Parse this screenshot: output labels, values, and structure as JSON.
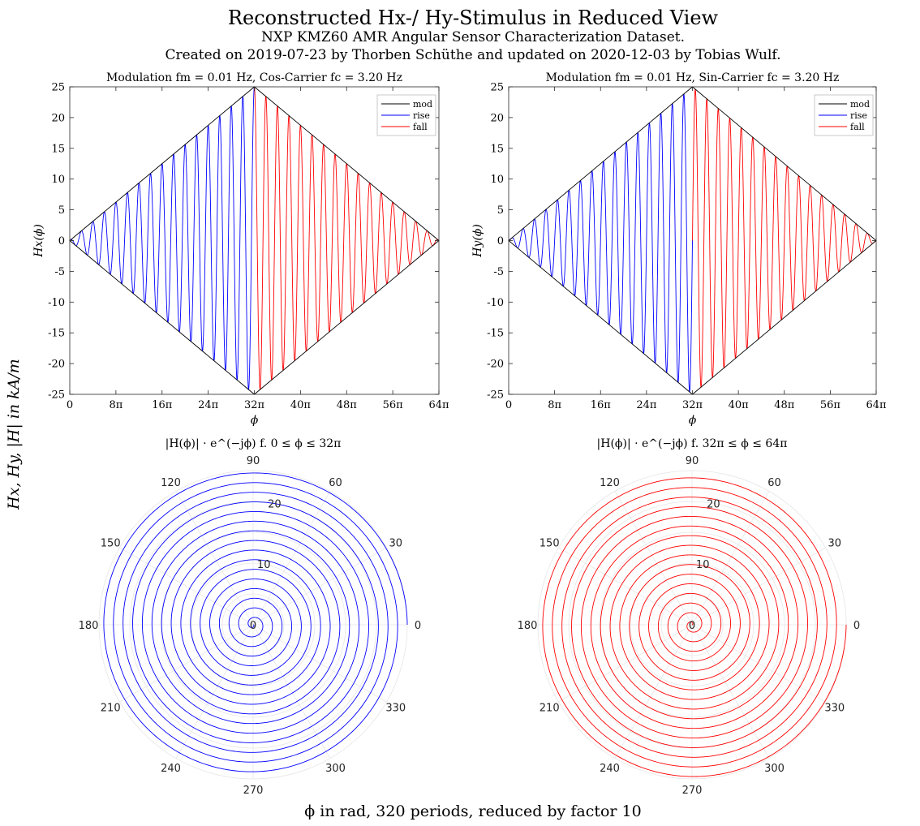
{
  "figure": {
    "title": "Reconstructed Hx-/ Hy-Stimulus in Reduced View",
    "subtitle1": "NXP KMZ60 AMR Angular Sensor Characterization Dataset.",
    "subtitle2": "Created on 2019-07-23 by Thorben Schüthe and updated on 2020-12-03 by Tobias Wulf.",
    "shared_ylabel": "Hx, Hy, |H| in kA/m",
    "shared_xlabel": "ϕ in rad, 320 periods, reduced by factor 10"
  },
  "colors": {
    "mod": "#000000",
    "rise": "#0000ff",
    "fall": "#ff0000",
    "axis": "#262626",
    "grid": "#e6e6e6"
  },
  "legend": [
    "mod",
    "rise",
    "fall"
  ],
  "chart_data": [
    {
      "type": "line",
      "title": "Modulation fm = 0.01 Hz, Cos-Carrier fc = 3.20 Hz",
      "xlabel": "ϕ",
      "ylabel": "Hx(ϕ)",
      "carrier": "cos",
      "periods": 32,
      "amplitude_max": 25,
      "xlim_pi": [
        0,
        64
      ],
      "ylim": [
        -25,
        25
      ],
      "x_ticks": [
        "0",
        "8π",
        "16π",
        "24π",
        "32π",
        "40π",
        "48π",
        "56π",
        "64π"
      ],
      "y_ticks": [
        "25",
        "20",
        "15",
        "10",
        "5",
        "0",
        "-5",
        "-10",
        "-15",
        "-20",
        "-25"
      ],
      "legend_position": "top-right",
      "series": [
        {
          "name": "mod",
          "description_values": {
            "envelope_peak": 25,
            "peak_at_pi": 32
          }
        },
        {
          "name": "rise",
          "x_range_pi": [
            0,
            32
          ]
        },
        {
          "name": "fall",
          "x_range_pi": [
            32,
            64
          ]
        }
      ]
    },
    {
      "type": "line",
      "title": "Modulation fm = 0.01 Hz, Sin-Carrier fc = 3.20 Hz",
      "xlabel": "ϕ",
      "ylabel": "Hy(ϕ)",
      "carrier": "sin",
      "periods": 32,
      "amplitude_max": 25,
      "xlim_pi": [
        0,
        64
      ],
      "ylim": [
        -25,
        25
      ],
      "x_ticks": [
        "0",
        "8π",
        "16π",
        "24π",
        "32π",
        "40π",
        "48π",
        "56π",
        "64π"
      ],
      "y_ticks": [
        "25",
        "20",
        "15",
        "10",
        "5",
        "0",
        "-5",
        "-10",
        "-15",
        "-20",
        "-25"
      ],
      "legend_position": "top-right",
      "series": [
        {
          "name": "mod",
          "description_values": {
            "envelope_peak": 25,
            "peak_at_pi": 32
          }
        },
        {
          "name": "rise",
          "x_range_pi": [
            0,
            32
          ]
        },
        {
          "name": "fall",
          "x_range_pi": [
            32,
            64
          ]
        }
      ]
    },
    {
      "type": "polar",
      "title": "|H(ϕ)| · e^(−jϕ) f. 0 ≤ ϕ ≤ 32π",
      "series": "rise",
      "turns": 16,
      "rlim": [
        0,
        25
      ],
      "r_ticks": [
        "0",
        "10",
        "20"
      ],
      "theta_ticks": [
        "0",
        "30",
        "60",
        "90",
        "120",
        "150",
        "180",
        "210",
        "240",
        "270",
        "300",
        "330"
      ]
    },
    {
      "type": "polar",
      "title": "|H(ϕ)| · e^(−jϕ) f. 32π ≤ ϕ ≤ 64π",
      "series": "fall",
      "turns": 16,
      "rlim": [
        0,
        25
      ],
      "r_ticks": [
        "0",
        "10",
        "20"
      ],
      "theta_ticks": [
        "0",
        "30",
        "60",
        "90",
        "120",
        "150",
        "180",
        "210",
        "240",
        "270",
        "300",
        "330"
      ]
    }
  ]
}
